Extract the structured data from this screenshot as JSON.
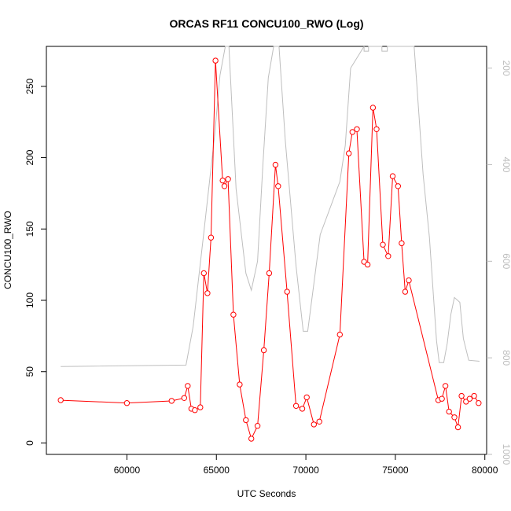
{
  "chart_data": {
    "type": "line",
    "title": "ORCAS RF11 CONCU100_RWO (Log)",
    "xlabel": "UTC Seconds",
    "ylabel": "CONCU100_RWO",
    "xlim": [
      55500,
      80100
    ],
    "ylim": [
      -8,
      278
    ],
    "xticks": [
      60000,
      65000,
      70000,
      75000,
      80000
    ],
    "yticks": [
      0,
      50,
      100,
      150,
      200,
      250
    ],
    "y2lim": [
      1000,
      155
    ],
    "y2ticks": [
      200,
      400,
      600,
      800,
      1000
    ],
    "grid": false,
    "legend": "none",
    "colors": {
      "primary": "#ff0000",
      "secondary": "#bebebe"
    },
    "series": [
      {
        "axis": "left",
        "color": "#ff0000",
        "marker": "open-circle",
        "x": [
          56300,
          60000,
          62500,
          63200,
          63400,
          63600,
          63800,
          64100,
          64300,
          64500,
          64700,
          64950,
          65350,
          65450,
          65650,
          65950,
          66300,
          66650,
          66950,
          67300,
          67650,
          67950,
          68300,
          68450,
          68950,
          69450,
          69800,
          70050,
          70450,
          70750,
          71900,
          72400,
          72600,
          72850,
          73250,
          73450,
          73750,
          73950,
          74300,
          74600,
          74850,
          75150,
          75350,
          75550,
          75750,
          77400,
          77600,
          77800,
          78000,
          78300,
          78500,
          78700,
          78950,
          79150,
          79400,
          79650
        ],
        "y": [
          30,
          28,
          29.5,
          31.5,
          40,
          24,
          23,
          25,
          119,
          105,
          144,
          268,
          184,
          180,
          185,
          90,
          41,
          16,
          3,
          12,
          65,
          119,
          195,
          180,
          106,
          26,
          24,
          32,
          13,
          15,
          76,
          203,
          218,
          220,
          127,
          125,
          235,
          220,
          139,
          131,
          187,
          180,
          140,
          106,
          114,
          30,
          31,
          40,
          22,
          18,
          11,
          33,
          29,
          31,
          33,
          28
        ]
      },
      {
        "axis": "right",
        "color": "#bebebe",
        "marker": "none",
        "x": [
          56300,
          63300,
          63700,
          64300,
          64900,
          65200,
          65500,
          65600,
          65700,
          66100,
          66650,
          66950,
          67300,
          67600,
          67900,
          68200,
          68500,
          68850,
          69450,
          69850,
          70100,
          70800,
          71200,
          71900,
          72200,
          72500,
          73250,
          73250,
          73500,
          73500,
          74250,
          74250,
          74550,
          74550,
          74950,
          75300,
          75650,
          76050,
          76550,
          76900,
          77300,
          77450,
          77700,
          77900,
          78100,
          78300,
          78600,
          78800,
          79100,
          79700
        ],
        "y": [
          818,
          815,
          735,
          540,
          340,
          215,
          145,
          120,
          145,
          450,
          625,
          660,
          600,
          400,
          220,
          145,
          130,
          350,
          610,
          745,
          745,
          545,
          505,
          435,
          360,
          200,
          155,
          165,
          165,
          155,
          155,
          165,
          165,
          155,
          145,
          130,
          120,
          145,
          420,
          550,
          765,
          810,
          810,
          770,
          710,
          675,
          685,
          760,
          805,
          807
        ]
      }
    ]
  }
}
